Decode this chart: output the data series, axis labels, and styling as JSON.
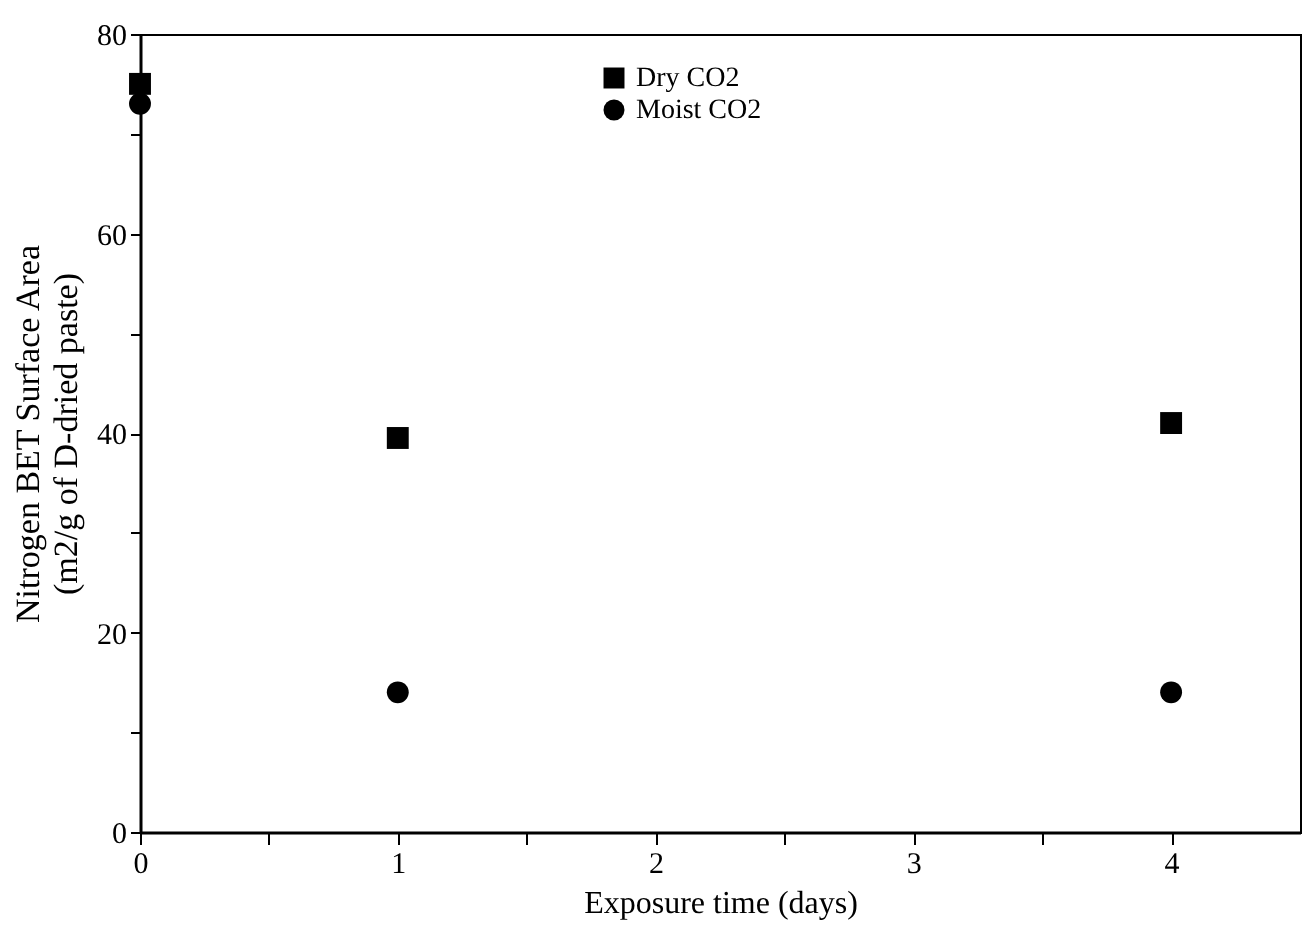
{
  "chart_data": {
    "type": "scatter",
    "xlabel": "Exposure time (days)",
    "ylabel": "Nitrogen BET Surface Area\n(m2/g of D-dried paste)",
    "x": [
      0,
      1,
      4
    ],
    "series": [
      {
        "name": "Dry CO2",
        "color": "#000000",
        "marker": "square",
        "values": [
          75,
          39.5,
          41
        ]
      },
      {
        "name": "Moist CO2",
        "color": "#000000",
        "marker": "circle",
        "values": [
          73,
          14,
          14
        ]
      }
    ],
    "xlim": [
      0,
      4.5
    ],
    "xticks": [
      0,
      {
        "value": 0.5,
        "label": null
      },
      1,
      {
        "value": 1.5,
        "label": null
      },
      2,
      {
        "value": 2.5,
        "label": null
      },
      3,
      {
        "value": 3.5,
        "label": null
      },
      4
    ],
    "ylim": [
      0,
      80
    ],
    "yticks": [
      0,
      {
        "value": 10,
        "label": null
      },
      20,
      {
        "value": 30,
        "label": null
      },
      40,
      {
        "value": 50,
        "label": null
      },
      60,
      {
        "value": 70,
        "label": null
      },
      80
    ],
    "grid": false,
    "legend": "top"
  }
}
